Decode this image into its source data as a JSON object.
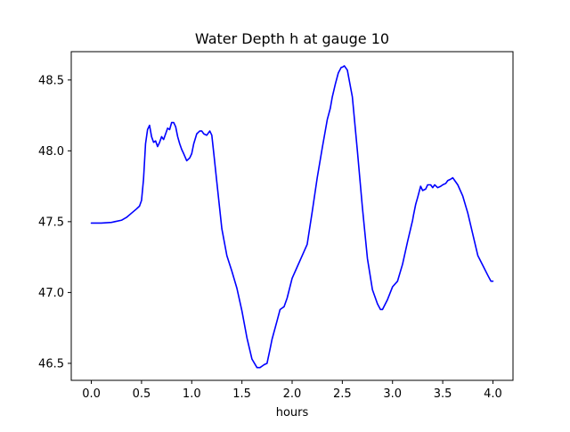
{
  "chart_data": {
    "type": "line",
    "title": "Water Depth h at gauge 10",
    "xlabel": "hours",
    "ylabel": "",
    "xlim": [
      -0.2,
      4.2
    ],
    "ylim": [
      46.38,
      48.7
    ],
    "xticks": [
      0.0,
      0.5,
      1.0,
      1.5,
      2.0,
      2.5,
      3.0,
      3.5,
      4.0
    ],
    "xtick_labels": [
      "0.0",
      "0.5",
      "1.0",
      "1.5",
      "2.0",
      "2.5",
      "3.0",
      "3.5",
      "4.0"
    ],
    "yticks": [
      46.5,
      47.0,
      47.5,
      48.0,
      48.5
    ],
    "ytick_labels": [
      "46.5",
      "47.0",
      "47.5",
      "48.0",
      "48.5"
    ],
    "grid": false,
    "legend": "none",
    "series": [
      {
        "color": "#0000ff",
        "x": [
          0.0,
          0.1,
          0.2,
          0.3,
          0.35,
          0.4,
          0.45,
          0.48,
          0.5,
          0.52,
          0.54,
          0.56,
          0.58,
          0.6,
          0.62,
          0.64,
          0.66,
          0.68,
          0.7,
          0.72,
          0.74,
          0.76,
          0.78,
          0.8,
          0.82,
          0.84,
          0.86,
          0.88,
          0.9,
          0.92,
          0.95,
          0.98,
          1.0,
          1.02,
          1.05,
          1.08,
          1.1,
          1.12,
          1.15,
          1.18,
          1.2,
          1.22,
          1.25,
          1.3,
          1.35,
          1.4,
          1.45,
          1.5,
          1.55,
          1.6,
          1.65,
          1.68,
          1.7,
          1.72,
          1.75,
          1.78,
          1.8,
          1.85,
          1.88,
          1.9,
          1.92,
          1.95,
          2.0,
          2.05,
          2.1,
          2.15,
          2.2,
          2.25,
          2.3,
          2.35,
          2.38,
          2.4,
          2.43,
          2.46,
          2.49,
          2.5,
          2.52,
          2.55,
          2.6,
          2.65,
          2.7,
          2.75,
          2.8,
          2.85,
          2.88,
          2.9,
          2.95,
          3.0,
          3.05,
          3.1,
          3.15,
          3.18,
          3.2,
          3.21,
          3.23,
          3.25,
          3.28,
          3.3,
          3.33,
          3.35,
          3.38,
          3.4,
          3.42,
          3.45,
          3.48,
          3.5,
          3.53,
          3.55,
          3.58,
          3.6,
          3.62,
          3.65,
          3.7,
          3.75,
          3.8,
          3.85,
          3.9,
          3.95,
          3.98,
          4.0
        ],
        "y": [
          47.49,
          47.49,
          47.495,
          47.51,
          47.53,
          47.56,
          47.59,
          47.61,
          47.65,
          47.8,
          48.05,
          48.15,
          48.18,
          48.1,
          48.06,
          48.07,
          48.03,
          48.06,
          48.1,
          48.08,
          48.12,
          48.16,
          48.15,
          48.2,
          48.2,
          48.17,
          48.1,
          48.05,
          48.01,
          47.98,
          47.93,
          47.95,
          47.98,
          48.05,
          48.12,
          48.14,
          48.14,
          48.12,
          48.11,
          48.14,
          48.11,
          47.98,
          47.78,
          47.45,
          47.26,
          47.15,
          47.03,
          46.87,
          46.68,
          46.53,
          46.47,
          46.47,
          46.48,
          46.49,
          46.5,
          46.6,
          46.67,
          46.8,
          46.88,
          46.89,
          46.9,
          46.96,
          47.1,
          47.18,
          47.26,
          47.34,
          47.57,
          47.81,
          48.02,
          48.22,
          48.3,
          48.38,
          48.47,
          48.55,
          48.59,
          48.59,
          48.6,
          48.57,
          48.38,
          48.0,
          47.6,
          47.24,
          47.02,
          46.92,
          46.88,
          46.88,
          46.95,
          47.04,
          47.08,
          47.2,
          47.36,
          47.45,
          47.51,
          47.55,
          47.62,
          47.67,
          47.75,
          47.72,
          47.73,
          47.76,
          47.76,
          47.74,
          47.76,
          47.74,
          47.75,
          47.76,
          47.77,
          47.79,
          47.8,
          47.81,
          47.79,
          47.76,
          47.68,
          47.56,
          47.41,
          47.26,
          47.19,
          47.12,
          47.08,
          47.08
        ]
      }
    ]
  }
}
